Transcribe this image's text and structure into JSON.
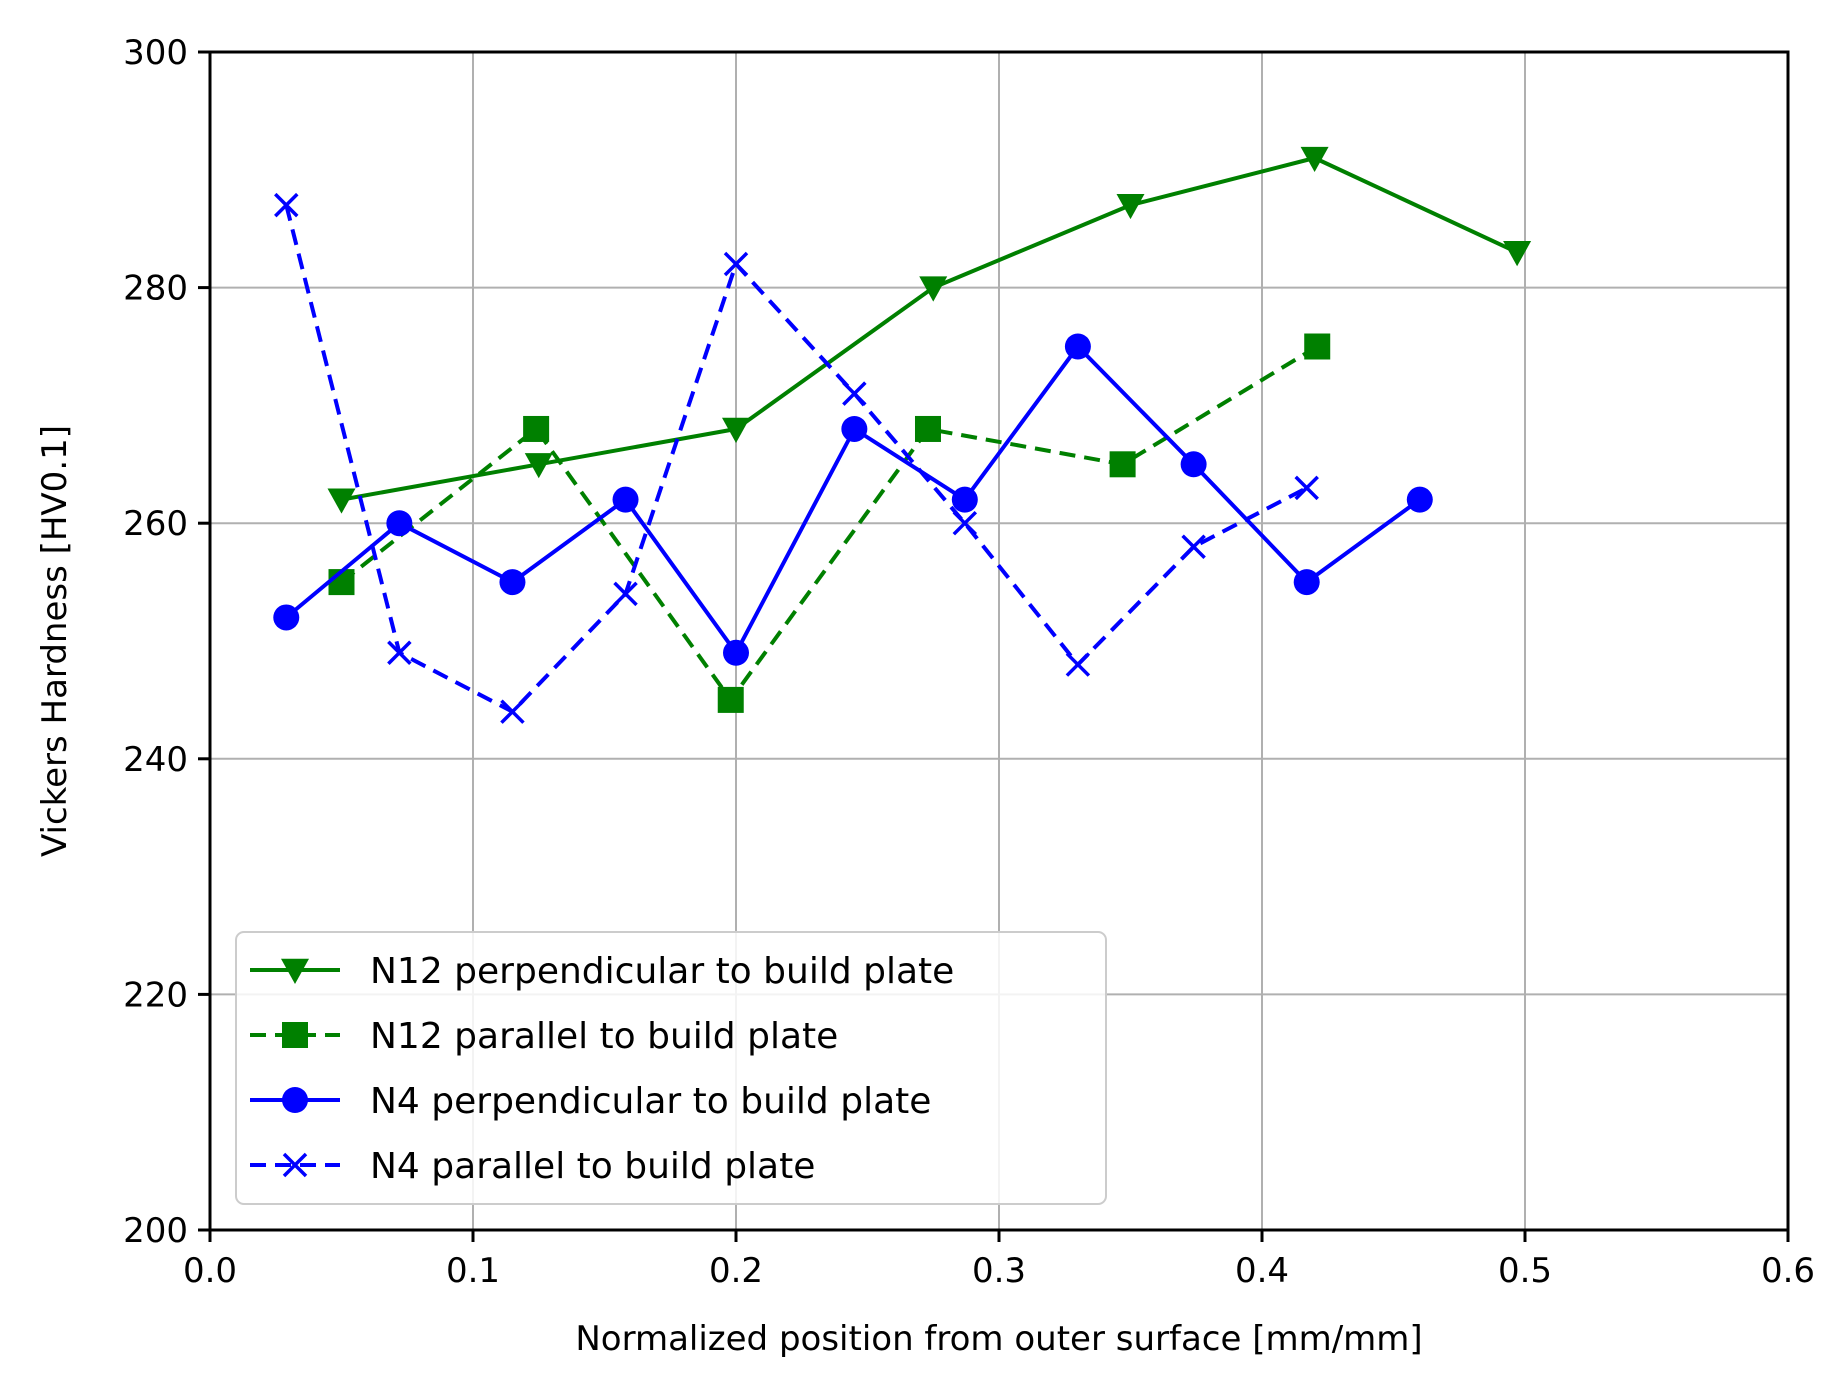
{
  "chart_data": {
    "type": "line",
    "title": "",
    "xlabel": "Normalized position from outer surface [mm/mm]",
    "ylabel": "Vickers Hardness [HV0.1]",
    "xlim": [
      0.0,
      0.6
    ],
    "ylim": [
      200,
      300
    ],
    "xticks": [
      "0.0",
      "0.1",
      "0.2",
      "0.3",
      "0.4",
      "0.5",
      "0.6"
    ],
    "xtick_values": [
      0.0,
      0.1,
      0.2,
      0.3,
      0.4,
      0.5,
      0.6
    ],
    "yticks": [
      "200",
      "220",
      "240",
      "260",
      "280",
      "300"
    ],
    "ytick_values": [
      200,
      220,
      240,
      260,
      280,
      300
    ],
    "grid": true,
    "legend_position": "bottom-left",
    "series": [
      {
        "name": "N12 perpendicular to build plate",
        "color": "#008000",
        "line": "solid",
        "marker": "triangle-down",
        "x": [
          0.05,
          0.125,
          0.2,
          0.275,
          0.35,
          0.42,
          0.497
        ],
        "y": [
          262,
          265,
          268,
          280,
          287,
          291,
          283
        ]
      },
      {
        "name": "N12 parallel to build plate",
        "color": "#008000",
        "line": "dashed",
        "marker": "square",
        "x": [
          0.05,
          0.124,
          0.198,
          0.273,
          0.347,
          0.421
        ],
        "y": [
          255,
          268,
          245,
          268,
          265,
          275
        ]
      },
      {
        "name": "N4 perpendicular to build plate",
        "color": "#0000ff",
        "line": "solid",
        "marker": "circle",
        "x": [
          0.029,
          0.072,
          0.115,
          0.158,
          0.2,
          0.245,
          0.287,
          0.33,
          0.374,
          0.417,
          0.46
        ],
        "y": [
          252,
          260,
          255,
          262,
          249,
          268,
          262,
          275,
          265,
          255,
          262
        ]
      },
      {
        "name": "N4 parallel to build plate",
        "color": "#0000ff",
        "line": "dashed",
        "marker": "x",
        "x": [
          0.029,
          0.072,
          0.115,
          0.158,
          0.2,
          0.245,
          0.287,
          0.33,
          0.374,
          0.417
        ],
        "y": [
          287,
          249,
          244,
          254,
          282,
          271,
          260,
          248,
          258,
          263
        ]
      }
    ]
  }
}
